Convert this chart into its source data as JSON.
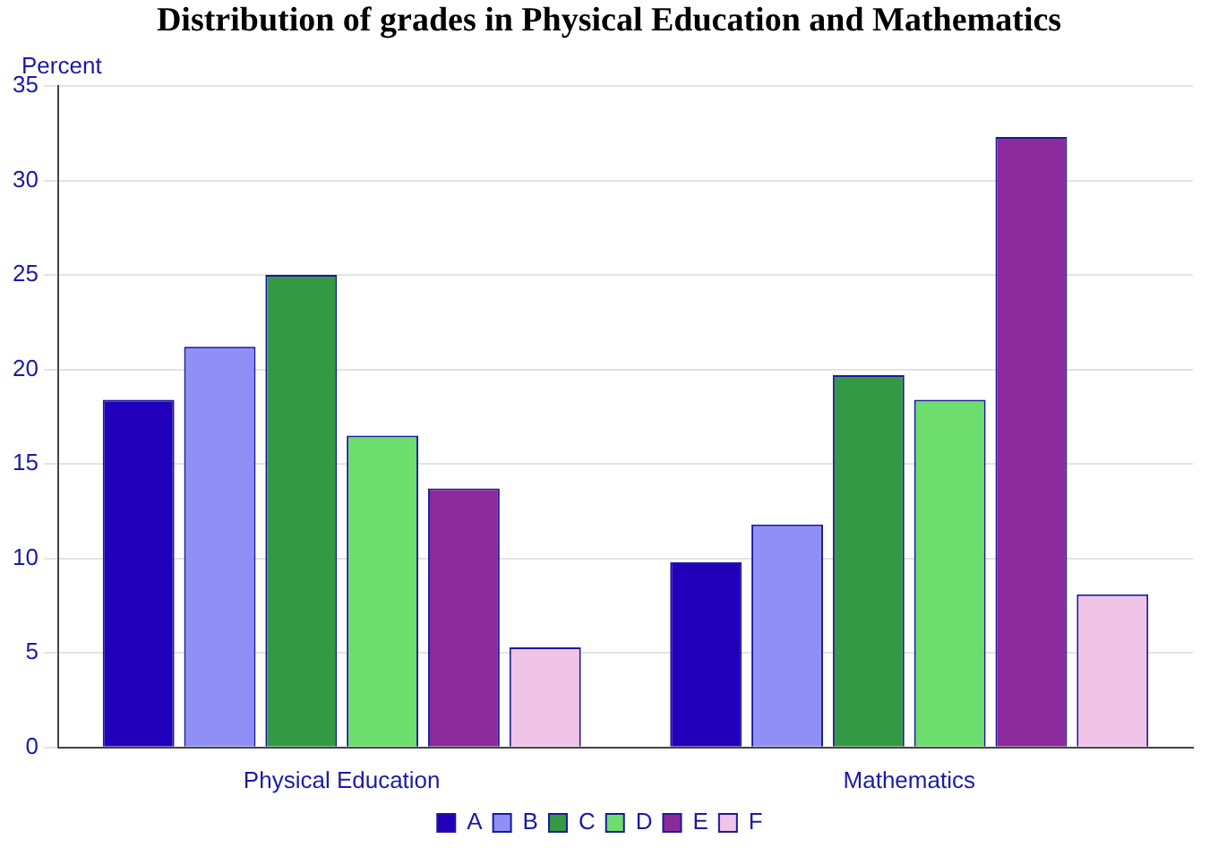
{
  "chart_data": {
    "type": "bar",
    "title": "Distribution of grades in Physical Education and Mathematics",
    "ylabel": "Percent",
    "categories": [
      "Physical Education",
      "Mathematics"
    ],
    "series": [
      {
        "name": "A",
        "color": "#2200bb",
        "values": [
          18.4,
          9.8
        ]
      },
      {
        "name": "B",
        "color": "#8f8ff5",
        "values": [
          21.2,
          11.8
        ]
      },
      {
        "name": "C",
        "color": "#339944",
        "values": [
          25.0,
          19.7
        ]
      },
      {
        "name": "D",
        "color": "#6ddd6d",
        "values": [
          16.5,
          18.4
        ]
      },
      {
        "name": "E",
        "color": "#8c2a9b",
        "values": [
          13.7,
          32.3
        ]
      },
      {
        "name": "F",
        "color": "#f0c4e6",
        "values": [
          5.3,
          8.1
        ]
      }
    ],
    "ylim": [
      0,
      35
    ],
    "yticks": [
      0,
      5,
      10,
      15,
      20,
      25,
      30,
      35
    ],
    "grid": "y",
    "legend": "bottom"
  }
}
